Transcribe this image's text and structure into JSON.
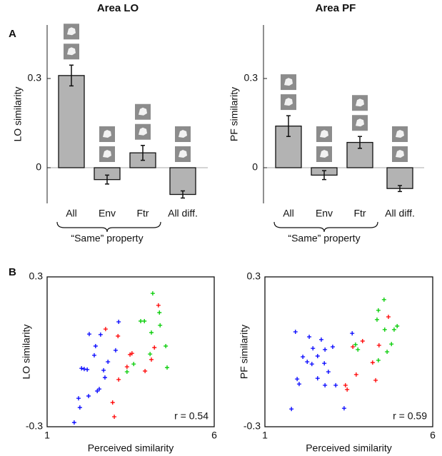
{
  "panel_labels": [
    "A",
    "B"
  ],
  "chart_data": [
    {
      "type": "bar",
      "title": "Area LO",
      "ylabel": "LO similarity",
      "categories": [
        "All",
        "Env",
        "Ftr",
        "All diff."
      ],
      "values": [
        0.31,
        -0.04,
        0.05,
        -0.09
      ],
      "errors": [
        0.035,
        0.015,
        0.025,
        0.012
      ],
      "color": "#b3b3b3",
      "ylim": [
        -0.12,
        0.48
      ],
      "yticks": [
        0,
        0.3
      ],
      "annotation": "“Same” property"
    },
    {
      "type": "bar",
      "title": "Area PF",
      "ylabel": "PF similarity",
      "categories": [
        "All",
        "Env",
        "Ftr",
        "All diff."
      ],
      "values": [
        0.14,
        -0.025,
        0.085,
        -0.07
      ],
      "errors": [
        0.035,
        0.015,
        0.02,
        0.01
      ],
      "color": "#b3b3b3",
      "ylim": [
        -0.12,
        0.48
      ],
      "yticks": [
        0,
        0.3
      ],
      "annotation": "“Same” property"
    },
    {
      "type": "scatter",
      "xlabel": "Perceived similarity",
      "ylabel": "LO similarity",
      "xlim": [
        1,
        6
      ],
      "ylim": [
        -0.3,
        0.3
      ],
      "xticks": [
        1,
        6
      ],
      "yticks": [
        -0.3,
        0.3
      ],
      "annotation": "r = 0.54",
      "series": [
        {
          "color": "#0000ff",
          "x": [
            1.81,
            1.98,
            1.94,
            2.24,
            2.5,
            2.11,
            2.2,
            2.03,
            2.73,
            2.69,
            2.82,
            2.41,
            2.26,
            2.6,
            2.45,
            3.14,
            3.05,
            2.56
          ],
          "y": [
            -0.283,
            -0.223,
            -0.186,
            -0.177,
            -0.157,
            -0.069,
            -0.071,
            -0.066,
            -0.103,
            -0.074,
            -0.04,
            -0.014,
            0.071,
            0.069,
            0.023,
            0.12,
            0.006,
            -0.149
          ]
        },
        {
          "color": "#ff0000",
          "x": [
            2.75,
            3.01,
            2.96,
            3.14,
            3.39,
            3.48,
            3.54,
            3.12,
            3.93,
            4.12,
            4.33,
            4.21
          ],
          "y": [
            0.091,
            -0.26,
            -0.203,
            -0.111,
            -0.06,
            -0.011,
            -0.006,
            0.063,
            -0.077,
            -0.031,
            0.186,
            0.017
          ]
        },
        {
          "color": "#00cc00",
          "x": [
            4.16,
            3.91,
            4.12,
            4.08,
            3.39,
            3.59,
            4.38,
            4.36,
            4.55,
            4.59,
            3.8
          ],
          "y": [
            0.234,
            0.123,
            0.077,
            -0.009,
            -0.08,
            -0.049,
            0.106,
            0.157,
            0.023,
            -0.063,
            0.123
          ]
        }
      ]
    },
    {
      "type": "scatter",
      "xlabel": "Perceived similarity",
      "ylabel": "PF similarity",
      "xlim": [
        1,
        6
      ],
      "ylim": [
        -0.3,
        0.3
      ],
      "xticks": [
        1,
        6
      ],
      "yticks": [
        -0.3,
        0.3
      ],
      "annotation": "r = 0.59",
      "series": [
        {
          "color": "#0000ff",
          "x": [
            1.79,
            1.91,
            2.32,
            2.43,
            2.68,
            2.79,
            2.57,
            2.13,
            2.26,
            2.4,
            2.79,
            3.11,
            2.89,
            2.57,
            2.02,
            1.96,
            3.36,
            3.6,
            3.02,
            2.77
          ],
          "y": [
            -0.229,
            0.08,
            0.06,
            0.014,
            0.049,
            0.009,
            -0.017,
            -0.02,
            -0.04,
            -0.049,
            -0.134,
            -0.134,
            -0.08,
            -0.106,
            -0.129,
            -0.109,
            -0.226,
            0.074,
            0.02,
            -0.046
          ]
        },
        {
          "color": "#ff0000",
          "x": [
            3.4,
            3.45,
            3.72,
            3.62,
            3.91,
            4.21,
            4.3,
            4.68,
            4.4
          ],
          "y": [
            -0.134,
            -0.151,
            -0.091,
            0.02,
            0.043,
            -0.043,
            -0.114,
            0.14,
            0.026
          ]
        },
        {
          "color": "#00cc00",
          "x": [
            4.55,
            4.38,
            4.34,
            4.57,
            4.85,
            4.94,
            4.64,
            4.77,
            3.77,
            4.38,
            3.7
          ],
          "y": [
            0.209,
            0.166,
            0.129,
            0.089,
            0.089,
            0.103,
            0,
            0.031,
            0.009,
            -0.034,
            0.029
          ]
        }
      ]
    }
  ]
}
